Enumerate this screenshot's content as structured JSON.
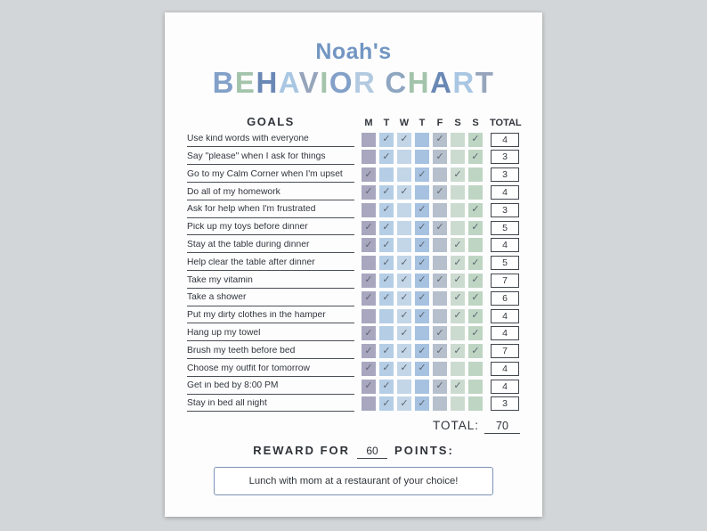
{
  "title": {
    "name": "Noah's",
    "letters": [
      {
        "ch": "B",
        "color": "#82a0c8"
      },
      {
        "ch": "E",
        "color": "#a3c4ab"
      },
      {
        "ch": "H",
        "color": "#6a88b4"
      },
      {
        "ch": "A",
        "color": "#a9c7e2"
      },
      {
        "ch": "V",
        "color": "#96a5bb"
      },
      {
        "ch": "I",
        "color": "#a3c4ab"
      },
      {
        "ch": "O",
        "color": "#82a0c8"
      },
      {
        "ch": "R",
        "color": "#b3cbe0"
      },
      {
        "ch": " "
      },
      {
        "ch": "C",
        "color": "#8fa6c0"
      },
      {
        "ch": "H",
        "color": "#a3c4ab"
      },
      {
        "ch": "A",
        "color": "#6a88b4"
      },
      {
        "ch": "R",
        "color": "#a9c7e2"
      },
      {
        "ch": "T",
        "color": "#96a5bb"
      }
    ]
  },
  "table": {
    "goals_header": "GOALS",
    "day_headers": [
      "M",
      "T",
      "W",
      "T",
      "F",
      "S",
      "S"
    ],
    "total_header": "TOTAL",
    "day_colors": [
      "#a8a7bf",
      "#b5cee6",
      "#c3d6e8",
      "#a6c2e0",
      "#b6bfcc",
      "#ccdbd0",
      "#bfd5c3"
    ],
    "check_glyph": "✓",
    "rows": [
      {
        "goal": "Use kind words with everyone",
        "checks": [
          0,
          1,
          1,
          0,
          1,
          0,
          1
        ],
        "total": 4
      },
      {
        "goal": "Say \"please\" when I ask for things",
        "checks": [
          0,
          1,
          0,
          0,
          1,
          0,
          1
        ],
        "total": 3
      },
      {
        "goal": "Go to my Calm Corner when I'm upset",
        "checks": [
          1,
          0,
          0,
          1,
          0,
          1,
          0
        ],
        "total": 3
      },
      {
        "goal": "Do all of my homework",
        "checks": [
          1,
          1,
          1,
          0,
          1,
          0,
          0
        ],
        "total": 4
      },
      {
        "goal": "Ask for help when I'm frustrated",
        "checks": [
          0,
          1,
          0,
          1,
          0,
          0,
          1
        ],
        "total": 3
      },
      {
        "goal": "Pick up my toys before dinner",
        "checks": [
          1,
          1,
          0,
          1,
          1,
          0,
          1
        ],
        "total": 5
      },
      {
        "goal": "Stay at the table during dinner",
        "checks": [
          1,
          1,
          0,
          1,
          0,
          1,
          0
        ],
        "total": 4
      },
      {
        "goal": "Help clear the table after dinner",
        "checks": [
          0,
          1,
          1,
          1,
          0,
          1,
          1
        ],
        "total": 5
      },
      {
        "goal": "Take my vitamin",
        "checks": [
          1,
          1,
          1,
          1,
          1,
          1,
          1
        ],
        "total": 7
      },
      {
        "goal": "Take a shower",
        "checks": [
          1,
          1,
          1,
          1,
          0,
          1,
          1
        ],
        "total": 6
      },
      {
        "goal": "Put my dirty clothes in the hamper",
        "checks": [
          0,
          0,
          1,
          1,
          0,
          1,
          1
        ],
        "total": 4
      },
      {
        "goal": "Hang up my towel",
        "checks": [
          1,
          0,
          1,
          0,
          1,
          0,
          1
        ],
        "total": 4
      },
      {
        "goal": "Brush my teeth before bed",
        "checks": [
          1,
          1,
          1,
          1,
          1,
          1,
          1
        ],
        "total": 7
      },
      {
        "goal": "Choose my outfit for tomorrow",
        "checks": [
          1,
          1,
          1,
          1,
          0,
          0,
          0
        ],
        "total": 4
      },
      {
        "goal": "Get in bed by 8:00 PM",
        "checks": [
          1,
          1,
          0,
          0,
          1,
          1,
          0
        ],
        "total": 4
      },
      {
        "goal": "Stay in bed all night",
        "checks": [
          0,
          1,
          1,
          1,
          0,
          0,
          0
        ],
        "total": 3
      }
    ],
    "total_label": "TOTAL:",
    "total_value": "70"
  },
  "reward": {
    "prefix": "REWARD FOR",
    "points": "60",
    "suffix": "POINTS:",
    "reward_text": "Lunch with mom at a restaurant of your choice!"
  }
}
